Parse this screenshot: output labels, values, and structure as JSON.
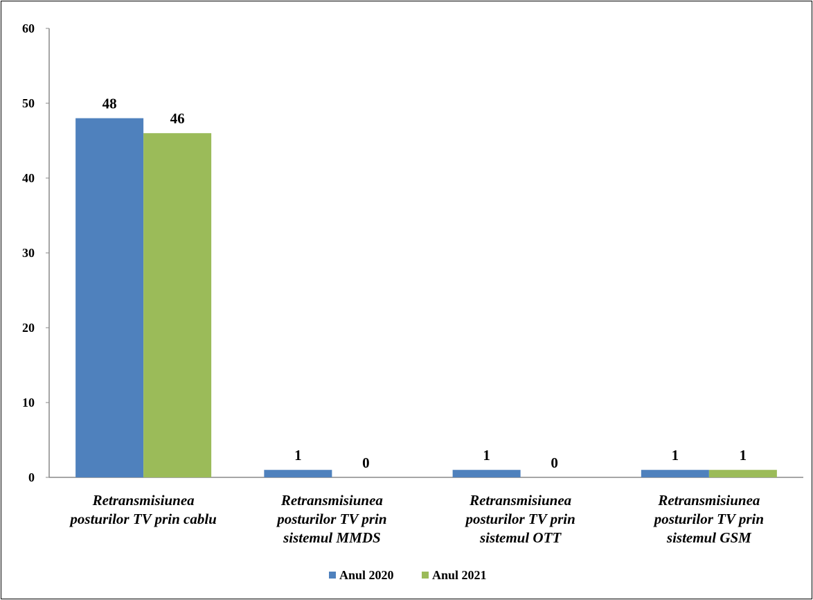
{
  "chart_data": {
    "type": "bar",
    "categories": [
      [
        "Retransmisiunea",
        "posturilor TV prin cablu"
      ],
      [
        "Retransmisiunea",
        "posturilor TV prin",
        "sistemul MMDS"
      ],
      [
        "Retransmisiunea",
        "posturilor TV prin",
        "sistemul OTT"
      ],
      [
        "Retransmisiunea",
        "posturilor TV prin",
        "sistemul GSM"
      ]
    ],
    "series": [
      {
        "name": "Anul 2020",
        "values": [
          48,
          1,
          1,
          1
        ],
        "color": "#4F81BD"
      },
      {
        "name": "Anul 2021",
        "values": [
          46,
          0,
          0,
          1
        ],
        "color": "#9BBB59"
      }
    ],
    "yticks": [
      0,
      10,
      20,
      30,
      40,
      50,
      60
    ],
    "ylim": [
      0,
      60
    ],
    "grid": false,
    "legend_position": "bottom",
    "data_labels": true,
    "title": "",
    "xlabel": "",
    "ylabel": ""
  }
}
